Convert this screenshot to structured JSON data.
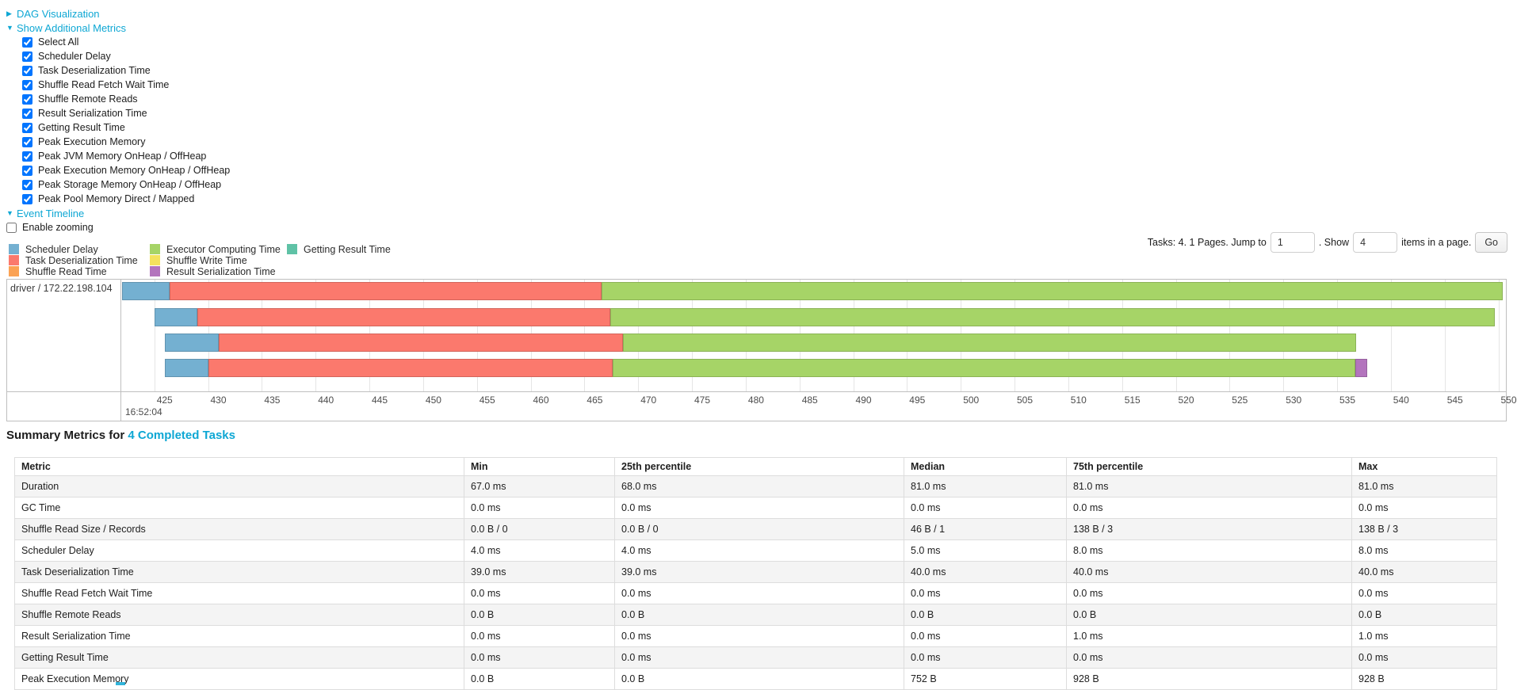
{
  "colors": {
    "link": "#0ea7d4",
    "scheduler_delay": "#74b0d1",
    "task_deserialization": "#fb796d",
    "shuffle_read": "#fba254",
    "executor_computing": "#a6d467",
    "shuffle_write": "#f4e25e",
    "result_serialization": "#b374bd",
    "getting_result": "#5fc2a6"
  },
  "toggles": {
    "dag": {
      "label": "DAG Visualization",
      "state": "collapsed"
    },
    "metrics": {
      "label": "Show Additional Metrics",
      "state": "expanded"
    },
    "timeline": {
      "label": "Event Timeline",
      "state": "expanded"
    }
  },
  "metric_checkboxes": [
    {
      "label": "Select All",
      "checked": true
    },
    {
      "label": "Scheduler Delay",
      "checked": true
    },
    {
      "label": "Task Deserialization Time",
      "checked": true
    },
    {
      "label": "Shuffle Read Fetch Wait Time",
      "checked": true
    },
    {
      "label": "Shuffle Remote Reads",
      "checked": true
    },
    {
      "label": "Result Serialization Time",
      "checked": true
    },
    {
      "label": "Getting Result Time",
      "checked": true
    },
    {
      "label": "Peak Execution Memory",
      "checked": true
    },
    {
      "label": "Peak JVM Memory OnHeap / OffHeap",
      "checked": true
    },
    {
      "label": "Peak Execution Memory OnHeap / OffHeap",
      "checked": true
    },
    {
      "label": "Peak Storage Memory OnHeap / OffHeap",
      "checked": true
    },
    {
      "label": "Peak Pool Memory Direct / Mapped",
      "checked": true
    }
  ],
  "enable_zooming": {
    "label": "Enable zooming",
    "checked": false
  },
  "legend": {
    "columns": [
      [
        {
          "label": "Scheduler Delay",
          "color": "scheduler_delay"
        },
        {
          "label": "Task Deserialization Time",
          "color": "task_deserialization"
        },
        {
          "label": "Shuffle Read Time",
          "color": "shuffle_read"
        }
      ],
      [
        {
          "label": "Executor Computing Time",
          "color": "executor_computing"
        },
        {
          "label": "Shuffle Write Time",
          "color": "shuffle_write"
        },
        {
          "label": "Result Serialization Time",
          "color": "result_serialization"
        }
      ],
      [
        {
          "label": "Getting Result Time",
          "color": "getting_result"
        }
      ]
    ]
  },
  "pagination": {
    "prefix": "Tasks: 4. 1 Pages. Jump to",
    "jump_value": "1",
    "mid": ". Show",
    "show_value": "4",
    "suffix": "items in a page.",
    "go_label": "Go"
  },
  "chart_data": {
    "type": "timeline-gantt",
    "row_label": "driver / 172.22.198.104",
    "axis": {
      "view_start": 422,
      "view_end": 550.7,
      "tick_start": 425,
      "tick_end": 550,
      "tick_step": 5,
      "major_label": "16:52:04",
      "grid": true
    },
    "tasks": [
      {
        "segments": [
          {
            "metric": "scheduler_delay",
            "from": 422.0,
            "to": 426.4
          },
          {
            "metric": "task_deserialization",
            "from": 426.4,
            "to": 466.6
          },
          {
            "metric": "executor_computing",
            "from": 466.6,
            "to": 550.4
          }
        ]
      },
      {
        "segments": [
          {
            "metric": "scheduler_delay",
            "from": 425.0,
            "to": 429.0
          },
          {
            "metric": "task_deserialization",
            "from": 429.0,
            "to": 467.4
          },
          {
            "metric": "executor_computing",
            "from": 467.4,
            "to": 549.7
          }
        ]
      },
      {
        "segments": [
          {
            "metric": "scheduler_delay",
            "from": 426.0,
            "to": 431.0
          },
          {
            "metric": "task_deserialization",
            "from": 431.0,
            "to": 468.6
          },
          {
            "metric": "executor_computing",
            "from": 468.6,
            "to": 536.8
          }
        ]
      },
      {
        "segments": [
          {
            "metric": "scheduler_delay",
            "from": 426.0,
            "to": 430.0
          },
          {
            "metric": "task_deserialization",
            "from": 430.0,
            "to": 467.6
          },
          {
            "metric": "executor_computing",
            "from": 467.6,
            "to": 536.7
          },
          {
            "metric": "result_serialization",
            "from": 536.7,
            "to": 537.8
          }
        ]
      }
    ]
  },
  "summary": {
    "title_prefix": "Summary Metrics for ",
    "title_link": "4 Completed Tasks",
    "table": {
      "headers": [
        "Metric",
        "Min",
        "25th percentile",
        "Median",
        "75th percentile",
        "Max"
      ],
      "rows": [
        {
          "metric": "Duration",
          "values": [
            "67.0 ms",
            "68.0 ms",
            "81.0 ms",
            "81.0 ms",
            "81.0 ms"
          ]
        },
        {
          "metric": "GC Time",
          "values": [
            "0.0 ms",
            "0.0 ms",
            "0.0 ms",
            "0.0 ms",
            "0.0 ms"
          ]
        },
        {
          "metric": "Shuffle Read Size / Records",
          "values": [
            "0.0 B / 0",
            "0.0 B / 0",
            "46 B / 1",
            "138 B / 3",
            "138 B / 3"
          ]
        },
        {
          "metric": "Scheduler Delay",
          "values": [
            "4.0 ms",
            "4.0 ms",
            "5.0 ms",
            "8.0 ms",
            "8.0 ms"
          ]
        },
        {
          "metric": "Task Deserialization Time",
          "values": [
            "39.0 ms",
            "39.0 ms",
            "40.0 ms",
            "40.0 ms",
            "40.0 ms"
          ]
        },
        {
          "metric": "Shuffle Read Fetch Wait Time",
          "values": [
            "0.0 ms",
            "0.0 ms",
            "0.0 ms",
            "0.0 ms",
            "0.0 ms"
          ]
        },
        {
          "metric": "Shuffle Remote Reads",
          "values": [
            "0.0 B",
            "0.0 B",
            "0.0 B",
            "0.0 B",
            "0.0 B"
          ]
        },
        {
          "metric": "Result Serialization Time",
          "values": [
            "0.0 ms",
            "0.0 ms",
            "0.0 ms",
            "1.0 ms",
            "1.0 ms"
          ]
        },
        {
          "metric": "Getting Result Time",
          "values": [
            "0.0 ms",
            "0.0 ms",
            "0.0 ms",
            "0.0 ms",
            "0.0 ms"
          ]
        },
        {
          "metric": "Peak Execution Memory",
          "values": [
            "0.0 B",
            "0.0 B",
            "752 B",
            "928 B",
            "928 B"
          ]
        }
      ]
    }
  }
}
